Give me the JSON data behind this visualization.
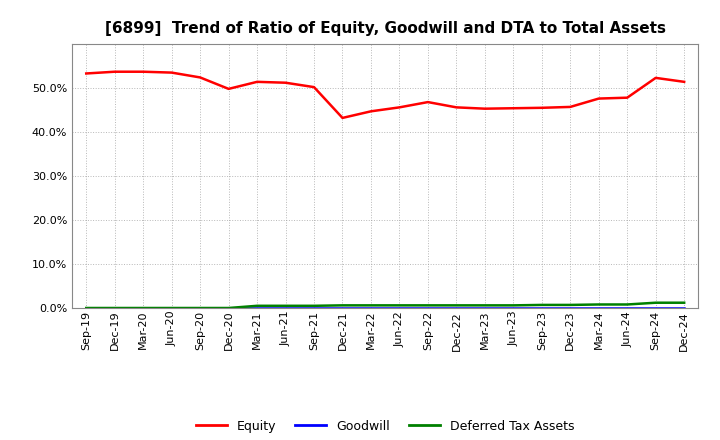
{
  "title": "[6899]  Trend of Ratio of Equity, Goodwill and DTA to Total Assets",
  "x_labels": [
    "Sep-19",
    "Dec-19",
    "Mar-20",
    "Jun-20",
    "Sep-20",
    "Dec-20",
    "Mar-21",
    "Jun-21",
    "Sep-21",
    "Dec-21",
    "Mar-22",
    "Jun-22",
    "Sep-22",
    "Dec-22",
    "Mar-23",
    "Jun-23",
    "Sep-23",
    "Dec-23",
    "Mar-24",
    "Jun-24",
    "Sep-24",
    "Dec-24"
  ],
  "equity": [
    0.533,
    0.537,
    0.537,
    0.535,
    0.524,
    0.498,
    0.514,
    0.512,
    0.502,
    0.432,
    0.447,
    0.456,
    0.468,
    0.456,
    0.453,
    0.454,
    0.455,
    0.457,
    0.476,
    0.478,
    0.523,
    0.514
  ],
  "goodwill": [
    0.0,
    0.0,
    0.0,
    0.0,
    0.0,
    0.0,
    0.0,
    0.0,
    0.0,
    0.0,
    0.0,
    0.0,
    0.0,
    0.0,
    0.0,
    0.0,
    0.0,
    0.0,
    0.0,
    0.0,
    0.0,
    0.0
  ],
  "dta": [
    0.0,
    0.0,
    0.0,
    0.0,
    0.0,
    0.0,
    0.005,
    0.005,
    0.005,
    0.006,
    0.006,
    0.006,
    0.006,
    0.006,
    0.006,
    0.006,
    0.007,
    0.007,
    0.008,
    0.008,
    0.012,
    0.012
  ],
  "equity_color": "#FF0000",
  "goodwill_color": "#0000FF",
  "dta_color": "#008000",
  "background_color": "#FFFFFF",
  "grid_color": "#999999",
  "ylim": [
    0.0,
    0.6
  ],
  "yticks": [
    0.0,
    0.1,
    0.2,
    0.3,
    0.4,
    0.5
  ],
  "title_fontsize": 11,
  "tick_fontsize": 8,
  "legend_fontsize": 9,
  "legend_labels": [
    "Equity",
    "Goodwill",
    "Deferred Tax Assets"
  ],
  "line_width": 1.8
}
